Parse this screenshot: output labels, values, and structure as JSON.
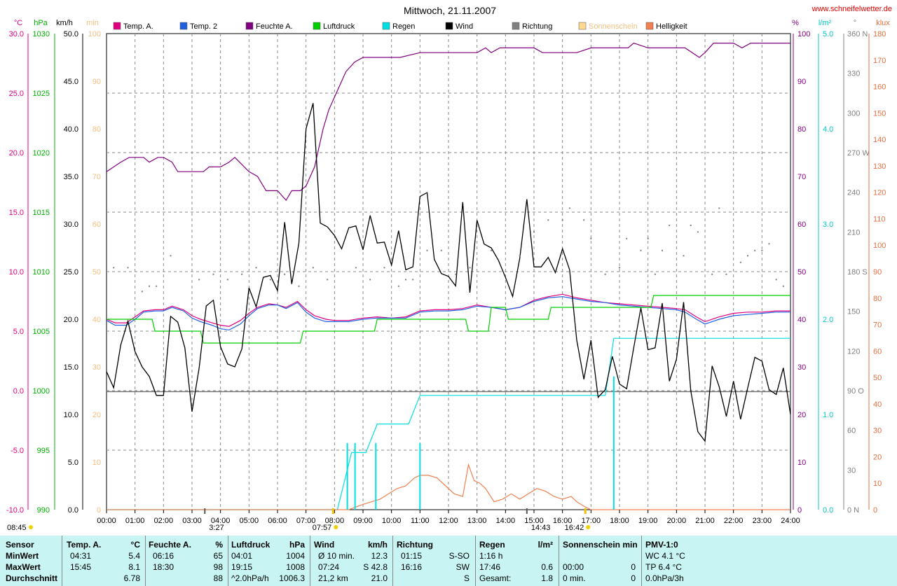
{
  "header": {
    "title": "Mittwoch, 21.11.2007",
    "website": "www.schneifelwetter.de"
  },
  "chart_data": {
    "type": "line",
    "title": "Mittwoch, 21.11.2007",
    "x_ticks": [
      "00:00",
      "01:00",
      "02:00",
      "03:00",
      "04:00",
      "05:00",
      "06:00",
      "07:00",
      "08:00",
      "09:00",
      "10:00",
      "11:00",
      "12:00",
      "13:00",
      "14:00",
      "15:00",
      "16:00",
      "17:00",
      "18:00",
      "19:00",
      "20:00",
      "21:00",
      "22:00",
      "23:00",
      "24:00"
    ],
    "axes": {
      "temp_c": {
        "unit": "°C",
        "ticks": [
          "30.0",
          "25.0",
          "20.0",
          "15.0",
          "10.0",
          "5.0",
          "0.0",
          "-5.0",
          "-10.0"
        ],
        "range": [
          -10,
          30
        ],
        "color": "#e0007f"
      },
      "pressure_hpa": {
        "unit": "hPa",
        "ticks": [
          "1030",
          "1025",
          "1020",
          "1015",
          "1010",
          "1005",
          "1000",
          "995",
          "990"
        ],
        "range": [
          990,
          1030
        ],
        "color": "#00b000"
      },
      "wind_kmh": {
        "unit": "km/h",
        "ticks": [
          "50.0",
          "45.0",
          "40.0",
          "35.0",
          "30.0",
          "25.0",
          "20.0",
          "15.0",
          "10.0",
          "5.0",
          "0.0"
        ],
        "range": [
          0,
          50
        ],
        "color": "#000000"
      },
      "sunshine_min": {
        "unit": "min",
        "ticks": [
          "100",
          "90",
          "80",
          "70",
          "60",
          "50",
          "40",
          "30",
          "20",
          "10",
          "0"
        ],
        "range": [
          0,
          100
        ],
        "color": "#f0c080"
      },
      "humidity_pct": {
        "unit": "%",
        "ticks": [
          "100",
          "90",
          "80",
          "70",
          "60",
          "50",
          "40",
          "30",
          "20",
          "10",
          "0"
        ],
        "range": [
          0,
          100
        ],
        "color": "#800080"
      },
      "rain_lm2": {
        "unit": "l/m²",
        "ticks": [
          "5.0",
          "4.0",
          "3.0",
          "2.0",
          "1.0",
          "0.0"
        ],
        "range": [
          0,
          5
        ],
        "color": "#00c8c8"
      },
      "direction_deg": {
        "unit": "°",
        "ticks": [
          "360 N",
          "330",
          "300",
          "270 W",
          "240",
          "210",
          "180 S",
          "150",
          "120",
          "90 O",
          "60",
          "30",
          "0 N"
        ],
        "range": [
          0,
          360
        ],
        "color": "#808080"
      },
      "brightness_klux": {
        "unit": "klux",
        "ticks": [
          "180",
          "170",
          "160",
          "150",
          "140",
          "130",
          "120",
          "110",
          "100",
          "90",
          "80",
          "70",
          "60",
          "50",
          "40",
          "30",
          "20",
          "10",
          "0"
        ],
        "range": [
          0,
          180
        ],
        "color": "#e07040"
      }
    },
    "legend": [
      {
        "name": "Temp. A.",
        "color": "#e0007f"
      },
      {
        "name": "Temp. 2",
        "color": "#2060e0"
      },
      {
        "name": "Feuchte A.",
        "color": "#800080"
      },
      {
        "name": "Luftdruck",
        "color": "#00d000"
      },
      {
        "name": "Regen",
        "color": "#00e0e0"
      },
      {
        "name": "Wind",
        "color": "#000000"
      },
      {
        "name": "Richtung",
        "color": "#808080"
      },
      {
        "name": "Sonnenschein",
        "color": "#ffd890"
      },
      {
        "name": "Helligkeit",
        "color": "#f08050"
      }
    ],
    "series": [
      {
        "name": "Temp. A.",
        "axis": "temp_c",
        "color": "#e0007f",
        "x": [
          0,
          0.3,
          0.7,
          1,
          1.3,
          1.7,
          2,
          2.3,
          2.7,
          3,
          3.3,
          3.7,
          4,
          4.3,
          4.7,
          5,
          5.3,
          5.7,
          6,
          6.3,
          6.7,
          7,
          7.3,
          7.7,
          8,
          8.5,
          9,
          9.5,
          10,
          10.5,
          11,
          11.5,
          12,
          12.5,
          13,
          13.5,
          14,
          14.5,
          15,
          15.5,
          16,
          16.5,
          17,
          17.5,
          18,
          18.5,
          19,
          19.5,
          20,
          20.3,
          20.7,
          21,
          21.5,
          22,
          22.5,
          23,
          23.5,
          24
        ],
        "y": [
          6.0,
          5.7,
          5.7,
          6.2,
          6.7,
          6.8,
          6.8,
          7.1,
          6.8,
          6.3,
          6.0,
          5.7,
          5.5,
          5.4,
          5.9,
          6.5,
          7.0,
          7.3,
          7.2,
          7.0,
          7.5,
          6.8,
          6.3,
          6.0,
          5.9,
          5.9,
          6.1,
          6.2,
          6.1,
          6.2,
          6.7,
          6.8,
          6.8,
          6.9,
          7.2,
          7.0,
          6.8,
          7.0,
          7.6,
          7.9,
          8.1,
          7.8,
          7.6,
          7.4,
          7.3,
          7.2,
          7.1,
          7.0,
          6.9,
          6.8,
          6.2,
          5.8,
          6.2,
          6.5,
          6.6,
          6.6,
          6.7,
          6.7
        ]
      },
      {
        "name": "Temp. 2",
        "axis": "temp_c",
        "color": "#2060e0",
        "x": [
          0,
          0.3,
          0.7,
          1,
          1.3,
          1.7,
          2,
          2.3,
          2.7,
          3,
          3.3,
          3.7,
          4,
          4.3,
          4.7,
          5,
          5.3,
          5.7,
          6,
          6.3,
          6.7,
          7,
          7.3,
          7.7,
          8,
          8.5,
          9,
          9.5,
          10,
          10.5,
          11,
          11.5,
          12,
          12.5,
          13,
          13.5,
          14,
          14.5,
          15,
          15.5,
          16,
          16.5,
          17,
          17.5,
          18,
          18.5,
          19,
          19.5,
          20,
          20.3,
          20.7,
          21,
          21.5,
          22,
          22.5,
          23,
          23.5,
          24
        ],
        "y": [
          5.9,
          5.5,
          5.5,
          6.0,
          6.6,
          6.7,
          6.7,
          7.0,
          6.7,
          6.1,
          5.8,
          5.5,
          5.2,
          5.1,
          5.6,
          6.3,
          6.9,
          7.2,
          7.2,
          6.9,
          7.4,
          6.6,
          6.1,
          5.8,
          5.8,
          5.8,
          6.0,
          6.1,
          6.1,
          6.1,
          6.6,
          6.7,
          6.7,
          6.8,
          7.1,
          7.0,
          6.8,
          7.0,
          7.5,
          7.8,
          7.9,
          7.7,
          7.5,
          7.4,
          7.2,
          7.1,
          7.0,
          6.9,
          6.8,
          6.6,
          6.0,
          5.6,
          6.0,
          6.3,
          6.4,
          6.5,
          6.6,
          6.6
        ]
      },
      {
        "name": "Feuchte A.",
        "axis": "humidity_pct",
        "color": "#800080",
        "x": [
          0,
          0.5,
          0.8,
          1,
          1.3,
          1.5,
          1.8,
          2,
          2.3,
          2.5,
          3,
          3.4,
          3.6,
          4,
          4.3,
          4.5,
          5,
          5.3,
          5.6,
          6,
          6.3,
          6.5,
          6.8,
          7,
          7.3,
          7.6,
          7.8,
          8.1,
          8.4,
          8.7,
          9,
          9.5,
          10,
          10.3,
          11,
          12,
          13,
          13.3,
          13.5,
          13.8,
          14,
          15,
          15.3,
          16,
          16.5,
          17,
          17.5,
          18,
          18.3,
          18.5,
          19,
          19.3,
          20,
          20.3,
          20.8,
          21,
          21.3,
          21.6,
          22,
          22.3,
          22.6,
          23,
          23.4,
          24
        ],
        "y": [
          71,
          73,
          74,
          74,
          74,
          73,
          74,
          74,
          73,
          71,
          71,
          71,
          72,
          72,
          73,
          74,
          71,
          70,
          67,
          67,
          65,
          67,
          67,
          68,
          72,
          80,
          84,
          88,
          92,
          94,
          95,
          95,
          95,
          95,
          96,
          96,
          96,
          97,
          96,
          97,
          97,
          97,
          96,
          96,
          96,
          97,
          97,
          97,
          97,
          98,
          97,
          97,
          97,
          97,
          95,
          96,
          98,
          98,
          98,
          97,
          98,
          98,
          98,
          98
        ]
      },
      {
        "name": "Luftdruck",
        "axis": "pressure_hpa",
        "color": "#00d000",
        "x": [
          0,
          1.6,
          1.7,
          3.3,
          3.4,
          6.8,
          6.9,
          9.4,
          9.5,
          12.6,
          12.7,
          13.4,
          13.5,
          14,
          14.1,
          15.5,
          15.6,
          17.2,
          17.3,
          19.1,
          19.2,
          21.0,
          21.1,
          24
        ],
        "y": [
          1006,
          1006,
          1005,
          1005,
          1004,
          1004,
          1005,
          1005,
          1006,
          1006,
          1005,
          1005,
          1007,
          1007,
          1006,
          1006,
          1007,
          1007,
          1007,
          1007,
          1008,
          1008,
          1008,
          1008
        ]
      },
      {
        "name": "Regen",
        "axis": "rain_lm2",
        "color": "#00e0e0",
        "x": [
          0,
          8.1,
          8.6,
          9.1,
          9.5,
          10.6,
          11.0,
          17.5,
          17.8,
          24
        ],
        "y": [
          0,
          0,
          0.6,
          0.6,
          0.9,
          0.9,
          1.2,
          1.2,
          1.8,
          1.8
        ]
      },
      {
        "name": "Wind",
        "axis": "wind_kmh",
        "color": "#000000",
        "x": [
          0,
          0.25,
          0.5,
          0.75,
          1,
          1.25,
          1.5,
          1.75,
          2,
          2.25,
          2.5,
          2.75,
          3,
          3.25,
          3.5,
          3.75,
          4,
          4.25,
          4.5,
          4.75,
          5,
          5.25,
          5.5,
          5.75,
          6,
          6.25,
          6.5,
          6.75,
          7,
          7.25,
          7.5,
          7.75,
          8,
          8.25,
          8.5,
          8.75,
          9,
          9.25,
          9.5,
          9.75,
          10,
          10.25,
          10.5,
          10.75,
          11,
          11.25,
          11.5,
          11.75,
          12,
          12.25,
          12.5,
          12.75,
          13,
          13.25,
          13.5,
          13.75,
          14,
          14.25,
          14.5,
          14.75,
          15,
          15.25,
          15.5,
          15.75,
          16,
          16.25,
          16.5,
          16.75,
          17,
          17.25,
          17.5,
          17.75,
          18,
          18.25,
          18.5,
          18.75,
          19,
          19.25,
          19.5,
          19.75,
          20,
          20.25,
          20.5,
          20.75,
          21,
          21.25,
          21.5,
          21.75,
          22,
          22.25,
          22.5,
          22.75,
          23,
          23.25,
          23.5,
          23.75,
          24
        ],
        "y": [
          14.5,
          12.8,
          17.3,
          19.8,
          16.6,
          15.0,
          14.0,
          12.0,
          12.0,
          20.3,
          19.7,
          17.0,
          10.3,
          14.9,
          21.4,
          22.0,
          17.1,
          15.3,
          15.0,
          16.9,
          23.3,
          21.3,
          24.4,
          24.6,
          23.0,
          30.2,
          23.7,
          28.0,
          40.0,
          42.7,
          30.1,
          29.7,
          28.8,
          27.4,
          29.6,
          29.8,
          27.3,
          30.9,
          28.0,
          28.1,
          25.7,
          29.3,
          25.2,
          25.5,
          32.9,
          33.3,
          26.3,
          24.8,
          24.5,
          23.5,
          32.3,
          22.8,
          30.4,
          27.9,
          27.5,
          26.2,
          24.4,
          22.4,
          26.4,
          32.6,
          25.5,
          25.5,
          26.5,
          24.9,
          27.4,
          25.2,
          17.8,
          13.7,
          17.8,
          11.8,
          12.6,
          16.1,
          13.2,
          12.7,
          17.0,
          21.2,
          16.8,
          17.0,
          21.7,
          13.5,
          15.8,
          21.8,
          12.5,
          8.2,
          7.2,
          15.1,
          12.9,
          9.8,
          13.5,
          9.5,
          12.8,
          16.0,
          15.6,
          12.6,
          12.1,
          14.9,
          10.0
        ]
      },
      {
        "name": "Helligkeit",
        "axis": "brightness_klux",
        "color": "#f08050",
        "x": [
          0,
          8.5,
          9.0,
          9.3,
          9.6,
          9.9,
          10.2,
          10.5,
          10.8,
          11.0,
          11.3,
          11.6,
          11.9,
          12.2,
          12.5,
          12.7,
          12.9,
          13.1,
          13.3,
          13.6,
          13.9,
          14.2,
          14.5,
          14.8,
          15.1,
          15.4,
          15.7,
          16.0,
          16.3,
          16.5,
          16.8,
          17.0,
          24
        ],
        "y": [
          0,
          0,
          2,
          3,
          4,
          6,
          8,
          9,
          12,
          13,
          13,
          12,
          9,
          6,
          5,
          17,
          11,
          10,
          8,
          3,
          4,
          6,
          4,
          6,
          8,
          7,
          5,
          4,
          5,
          3,
          1,
          0,
          0
        ]
      }
    ],
    "richtung_points": {
      "axis": "direction_deg",
      "color": "#808080",
      "x": [
        0.25,
        0.75,
        1.25,
        1.5,
        1.75,
        2.25,
        3.25,
        3.75,
        4.25,
        4.75,
        5.25,
        5.75,
        6.25,
        6.75,
        7.25,
        7.75,
        8.75,
        9.25,
        9.75,
        10.25,
        10.5,
        10.75,
        11.25,
        11.75,
        12.25,
        12.75,
        13.5,
        14.5,
        15,
        15.5,
        16,
        16.25,
        16.75,
        17,
        17.5,
        18,
        18.25,
        18.75,
        19,
        19.25,
        19.5,
        19.75,
        20.25,
        20.5,
        20.75,
        21.25,
        21.5,
        21.75,
        22.25,
        22.5,
        22.75,
        23,
        23.25,
        23.5,
        23.75
      ],
      "y": [
        183,
        183,
        165,
        169,
        169,
        192,
        174,
        178,
        174,
        178,
        183,
        174,
        178,
        169,
        183,
        174,
        183,
        174,
        183,
        169,
        174,
        174,
        196,
        196,
        178,
        183,
        196,
        192,
        210,
        219,
        219,
        228,
        219,
        205,
        178,
        183,
        205,
        196,
        205,
        178,
        196,
        215,
        192,
        215,
        210,
        178,
        228,
        178,
        187,
        192,
        196,
        196,
        201,
        174,
        169
      ]
    },
    "sunshine_markers": {
      "x": [
        7.95,
        16.8
      ],
      "labels": [
        "07:57",
        "16:42"
      ]
    },
    "other_markers": {
      "x": [
        3.45,
        14.75
      ],
      "labels": [
        "3:27",
        "14:43"
      ]
    },
    "bottom_left_time": "08:45",
    "reference_line_wind": 12.4
  },
  "summary": {
    "headers": {
      "sensor": "Sensor",
      "temp": "Temp. A.",
      "temp_unit": "°C",
      "feuchte": "Feuchte A.",
      "feuchte_unit": "%",
      "luftdruck": "Luftdruck",
      "luftdruck_unit": "hPa",
      "wind": "Wind",
      "wind_unit": "km/h",
      "richtung": "Richtung",
      "regen": "Regen",
      "regen_unit": "l/m²",
      "sonne": "Sonnenschein min",
      "pmv": "PMV-1:0"
    },
    "rows": [
      {
        "label": "MinWert",
        "temp_t": "04:31",
        "temp_v": "5.4",
        "feuchte_t": "06:16",
        "feuchte_v": "65",
        "druck_t": "04:01",
        "druck_v": "1004",
        "wind_t": "Ø 10 min.",
        "wind_v": "12.3",
        "richtung_t": "01:15",
        "richtung_v": "S-SO",
        "regen_t": "1:16 h",
        "regen_v": "",
        "sonne_t": "",
        "sonne_v": "",
        "pmv": "WC 4.1 °C"
      },
      {
        "label": "MaxWert",
        "temp_t": "15:45",
        "temp_v": "8.1",
        "feuchte_t": "18:30",
        "feuchte_v": "98",
        "druck_t": "19:15",
        "druck_v": "1008",
        "wind_t": "07:24",
        "wind_v": "S 42.8",
        "richtung_t": "16:16",
        "richtung_v": "SW",
        "regen_t": "17:46",
        "regen_v": "0.6",
        "sonne_t": "00:00",
        "sonne_v": "0",
        "pmv": "TP 6.4 °C"
      },
      {
        "label": "Durchschnitt",
        "temp_t": "",
        "temp_v": "6.78",
        "feuchte_t": "",
        "feuchte_v": "88",
        "druck_t": "^2.0hPa/h",
        "druck_v": "1006.3",
        "wind_t": "21,2 km",
        "wind_v": "21.0",
        "richtung_t": "",
        "richtung_v": "S",
        "regen_t": "Gesamt:",
        "regen_v": "1.8",
        "sonne_t": "0 min.",
        "sonne_v": "0",
        "pmv": "0.0hPa/3h"
      }
    ]
  }
}
